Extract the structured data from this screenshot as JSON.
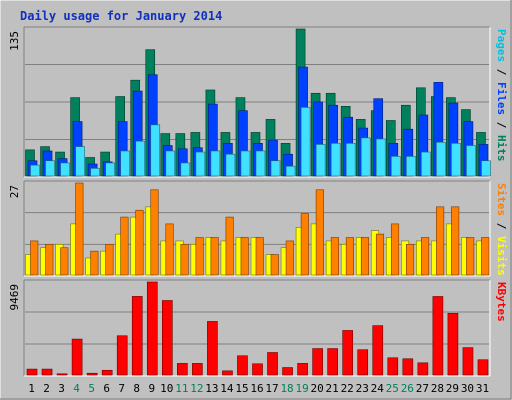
{
  "chart_data": {
    "type": "bar",
    "title": "Daily usage for January 2014",
    "days": [
      "1",
      "2",
      "3",
      "4",
      "5",
      "6",
      "7",
      "8",
      "9",
      "10",
      "11",
      "12",
      "13",
      "14",
      "15",
      "16",
      "17",
      "18",
      "19",
      "20",
      "21",
      "22",
      "23",
      "24",
      "25",
      "26",
      "27",
      "28",
      "29",
      "30",
      "31"
    ],
    "weekend_days": [
      "4",
      "5",
      "11",
      "12",
      "18",
      "19",
      "25",
      "26"
    ],
    "colors": {
      "background": "#c0c0c0",
      "plot": "#c0c0c0",
      "hits": "#00805c",
      "files": "#0040ff",
      "pages": "#00e0ff",
      "visits": "#ffff00",
      "sites": "#ff8000",
      "kbytes": "#ff0000",
      "title": "#1030c0",
      "weekday_label": "#000000",
      "weekend_label": "#00805c"
    },
    "panels": [
      {
        "id": "hits-files-pages",
        "ymax_label": "135",
        "ymax": 135,
        "legend": [
          {
            "text": "Pages",
            "color": "#00c0e0"
          },
          {
            "text": " / ",
            "color": "#000000"
          },
          {
            "text": "Files",
            "color": "#0040ff"
          },
          {
            "text": " / ",
            "color": "#000000"
          },
          {
            "text": "Hits",
            "color": "#00805c"
          }
        ],
        "series": [
          {
            "name": "Hits",
            "color": "#00805c",
            "values": [
              24,
              27,
              22,
              72,
              17,
              22,
              73,
              88,
              116,
              39,
              39,
              40,
              79,
              40,
              72,
              40,
              52,
              30,
              135,
              76,
              76,
              64,
              52,
              60,
              51,
              65,
              81,
              73,
              72,
              61,
              40
            ]
          },
          {
            "name": "Files",
            "color": "#0040ff",
            "values": [
              14,
              23,
              16,
              50,
              11,
              13,
              50,
              78,
              93,
              28,
              25,
              26,
              66,
              30,
              60,
              30,
              33,
              20,
              100,
              68,
              65,
              54,
              44,
              71,
              30,
              43,
              56,
              86,
              67,
              50,
              29
            ]
          },
          {
            "name": "Pages",
            "color": "#40e0ff",
            "values": [
              10,
              14,
              12,
              27,
              7,
              12,
              23,
              32,
              47,
              23,
              12,
              22,
              23,
              20,
              23,
              23,
              14,
              9,
              63,
              29,
              30,
              30,
              35,
              34,
              18,
              18,
              22,
              31,
              30,
              28,
              14
            ]
          }
        ]
      },
      {
        "id": "visits-sites",
        "ymax_label": "27",
        "ymax": 27,
        "legend": [
          {
            "text": "Sites",
            "color": "#ff8000"
          },
          {
            "text": " / ",
            "color": "#000000"
          },
          {
            "text": "Visits",
            "color": "#ffff00"
          }
        ],
        "series": [
          {
            "name": "Visits",
            "color": "#ffff00",
            "values": [
              6,
              8,
              9,
              15,
              5,
              7,
              12,
              17,
              20,
              10,
              10,
              9,
              11,
              10,
              11,
              11,
              6,
              8,
              14,
              15,
              10,
              9,
              11,
              13,
              11,
              10,
              10,
              10,
              15,
              11,
              10
            ]
          },
          {
            "name": "Sites",
            "color": "#ff8000",
            "values": [
              10,
              9,
              8,
              27,
              7,
              9,
              17,
              19,
              25,
              15,
              9,
              11,
              11,
              17,
              11,
              11,
              6,
              10,
              18,
              25,
              11,
              11,
              11,
              12,
              15,
              9,
              11,
              20,
              20,
              11,
              11
            ]
          }
        ]
      },
      {
        "id": "kbytes",
        "ymax_label": "9469",
        "ymax": 9469,
        "legend": [
          {
            "text": "KBytes",
            "color": "#ff0000"
          }
        ],
        "series": [
          {
            "name": "KBytes",
            "color": "#ff0000",
            "values": [
              602,
              602,
              121,
              3658,
              181,
              482,
              3997,
              8004,
              9469,
              7585,
              1182,
              1182,
              5455,
              422,
              1958,
              1142,
              2292,
              761,
              1184,
              2693,
              2693,
              4535,
              2573,
              5027,
              1753,
              1653,
              1242,
              7995,
              6285,
              2785,
              1553
            ]
          }
        ]
      }
    ]
  }
}
